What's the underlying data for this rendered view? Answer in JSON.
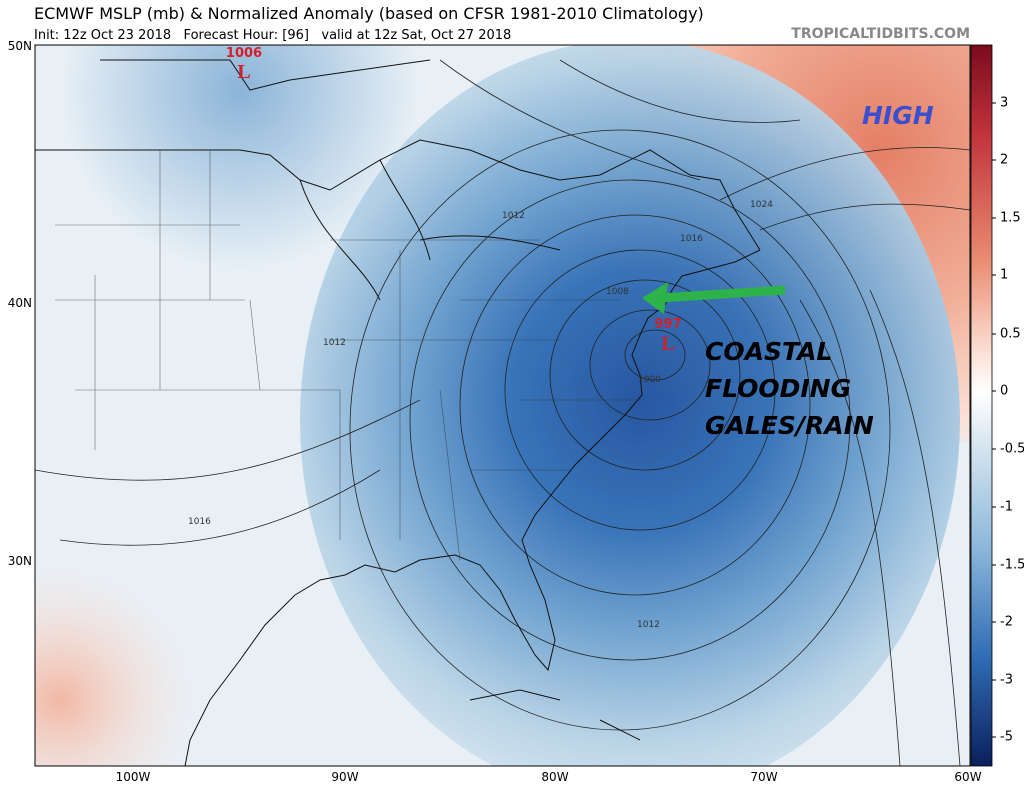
{
  "header": {
    "title": "ECMWF MSLP (mb) & Normalized Anomaly (based on CFSR 1981-2010 Climatology)",
    "subtitle": "Init: 12z Oct 23 2018   Forecast Hour: [96]   valid at 12z Sat, Oct 27 2018",
    "watermark": "TROPICALTIDBITS.COM"
  },
  "axes": {
    "lat_labels": [
      "50N",
      "40N",
      "30N"
    ],
    "lon_labels": [
      "100W",
      "90W",
      "80W",
      "70W",
      "60W"
    ]
  },
  "colorbar": {
    "ticks": [
      3,
      2,
      1.5,
      1,
      0.5,
      0,
      -0.5,
      -1,
      -1.5,
      -2,
      -3,
      -5
    ]
  },
  "centers": [
    {
      "pressure": "1006",
      "symbol": "L"
    },
    {
      "pressure": "997",
      "symbol": "L"
    }
  ],
  "contour_labels": [
    "1012",
    "1016",
    "1024",
    "1008",
    "1000",
    "1012",
    "1016",
    "1012"
  ],
  "annotations": {
    "high": "HIGH",
    "impact": [
      "COASTAL",
      "FLOODING",
      "GALES/RAIN"
    ]
  }
}
